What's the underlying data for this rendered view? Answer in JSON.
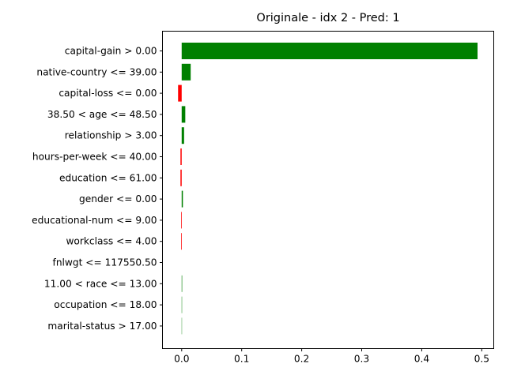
{
  "chart_data": {
    "type": "bar",
    "orientation": "horizontal",
    "title": "Originale - idx 2 - Pred: 1",
    "xlabel": "",
    "ylabel": "",
    "xlim": [
      -0.032,
      0.52
    ],
    "x_ticks": [
      0.0,
      0.1,
      0.2,
      0.3,
      0.4,
      0.5
    ],
    "x_tick_labels": [
      "0.0",
      "0.1",
      "0.2",
      "0.3",
      "0.4",
      "0.5"
    ],
    "grid": false,
    "colors": {
      "positive": "#008000",
      "negative": "#ff0000"
    },
    "categories": [
      "capital-gain > 0.00",
      "native-country <= 39.00",
      "capital-loss <= 0.00",
      "38.50 < age <= 48.50",
      "relationship > 3.00",
      "hours-per-week <= 40.00",
      "education <= 61.00",
      "gender <= 0.00",
      "educational-num <= 9.00",
      "workclass <= 4.00",
      "fnlwgt <= 117550.50",
      "11.00 < race <= 13.00",
      "occupation <= 18.00",
      "marital-status > 17.00"
    ],
    "values": [
      0.493,
      0.015,
      -0.006,
      0.006,
      0.004,
      -0.002,
      -0.002,
      0.002,
      -0.001,
      -0.001,
      0.0,
      0.0008,
      0.0006,
      0.0005
    ]
  }
}
